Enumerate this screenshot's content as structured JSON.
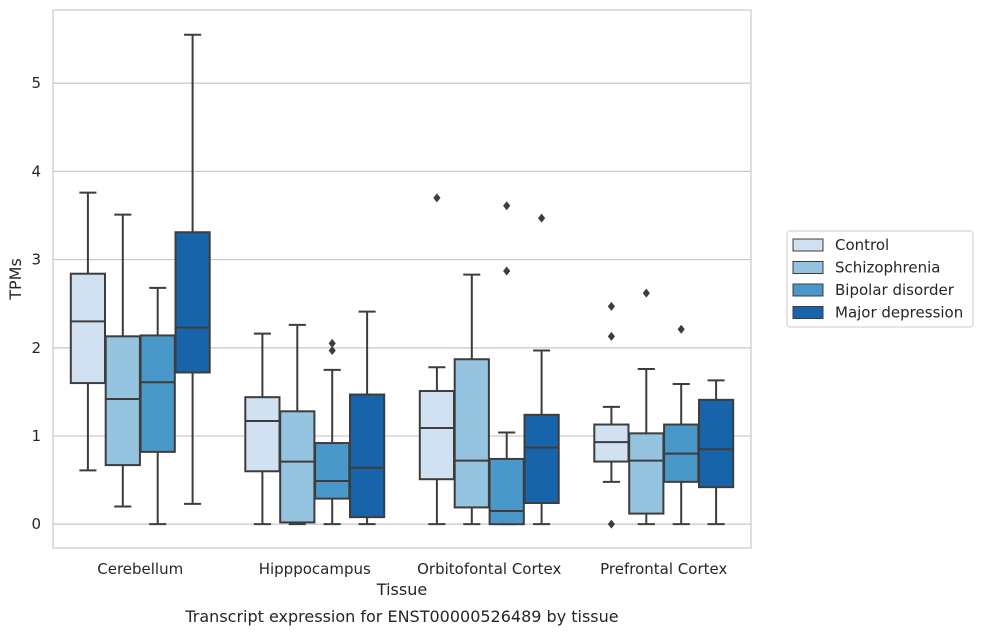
{
  "chart_data": {
    "type": "box",
    "caption": "Transcript expression for ENST00000526489 by tissue",
    "xlabel": "Tissue",
    "ylabel": "TPMs",
    "ylim": [
      -0.27,
      5.83
    ],
    "yticks": [
      0,
      1,
      2,
      3,
      4,
      5
    ],
    "grid": "horizontal",
    "legend_position": "right",
    "categories": [
      "Cerebellum",
      "Hipppocampus",
      "Orbitofontal Cortex",
      "Prefrontal Cortex"
    ],
    "series": [
      {
        "name": "Control",
        "color": "#d0e1f2",
        "boxes": [
          {
            "whisker_low": 0.61,
            "q1": 1.6,
            "median": 2.3,
            "q3": 2.84,
            "whisker_high": 3.76,
            "outliers": []
          },
          {
            "whisker_low": 0.0,
            "q1": 0.6,
            "median": 1.17,
            "q3": 1.44,
            "whisker_high": 2.16,
            "outliers": []
          },
          {
            "whisker_low": 0.0,
            "q1": 0.51,
            "median": 1.09,
            "q3": 1.51,
            "whisker_high": 1.78,
            "outliers": [
              3.7
            ]
          },
          {
            "whisker_low": 0.48,
            "q1": 0.71,
            "median": 0.93,
            "q3": 1.13,
            "whisker_high": 1.33,
            "outliers": [
              0.0,
              2.13,
              2.47
            ]
          }
        ]
      },
      {
        "name": "Schizophrenia",
        "color": "#94c4df",
        "boxes": [
          {
            "whisker_low": 0.2,
            "q1": 0.67,
            "median": 1.42,
            "q3": 2.13,
            "whisker_high": 3.51,
            "outliers": []
          },
          {
            "whisker_low": 0.0,
            "q1": 0.02,
            "median": 0.71,
            "q3": 1.28,
            "whisker_high": 2.26,
            "outliers": []
          },
          {
            "whisker_low": 0.0,
            "q1": 0.19,
            "median": 0.72,
            "q3": 1.87,
            "whisker_high": 2.83,
            "outliers": []
          },
          {
            "whisker_low": 0.0,
            "q1": 0.12,
            "median": 0.72,
            "q3": 1.03,
            "whisker_high": 1.76,
            "outliers": [
              2.62
            ]
          }
        ]
      },
      {
        "name": "Bipolar disorder",
        "color": "#4a98c9",
        "boxes": [
          {
            "whisker_low": 0.0,
            "q1": 0.82,
            "median": 1.61,
            "q3": 2.14,
            "whisker_high": 2.68,
            "outliers": []
          },
          {
            "whisker_low": 0.0,
            "q1": 0.29,
            "median": 0.49,
            "q3": 0.92,
            "whisker_high": 1.75,
            "outliers": [
              1.97,
              2.05
            ]
          },
          {
            "whisker_low": 0.0,
            "q1": 0.0,
            "median": 0.15,
            "q3": 0.74,
            "whisker_high": 1.04,
            "outliers": [
              2.87,
              3.61
            ]
          },
          {
            "whisker_low": 0.0,
            "q1": 0.48,
            "median": 0.8,
            "q3": 1.13,
            "whisker_high": 1.59,
            "outliers": [
              2.21
            ]
          }
        ]
      },
      {
        "name": "Major depression",
        "color": "#1764ab",
        "boxes": [
          {
            "whisker_low": 0.23,
            "q1": 1.72,
            "median": 2.23,
            "q3": 3.31,
            "whisker_high": 5.55,
            "outliers": []
          },
          {
            "whisker_low": 0.0,
            "q1": 0.08,
            "median": 0.64,
            "q3": 1.47,
            "whisker_high": 2.41,
            "outliers": []
          },
          {
            "whisker_low": 0.0,
            "q1": 0.24,
            "median": 0.87,
            "q3": 1.24,
            "whisker_high": 1.97,
            "outliers": [
              3.47
            ]
          },
          {
            "whisker_low": 0.0,
            "q1": 0.42,
            "median": 0.85,
            "q3": 1.41,
            "whisker_high": 1.63,
            "outliers": []
          }
        ]
      }
    ]
  }
}
